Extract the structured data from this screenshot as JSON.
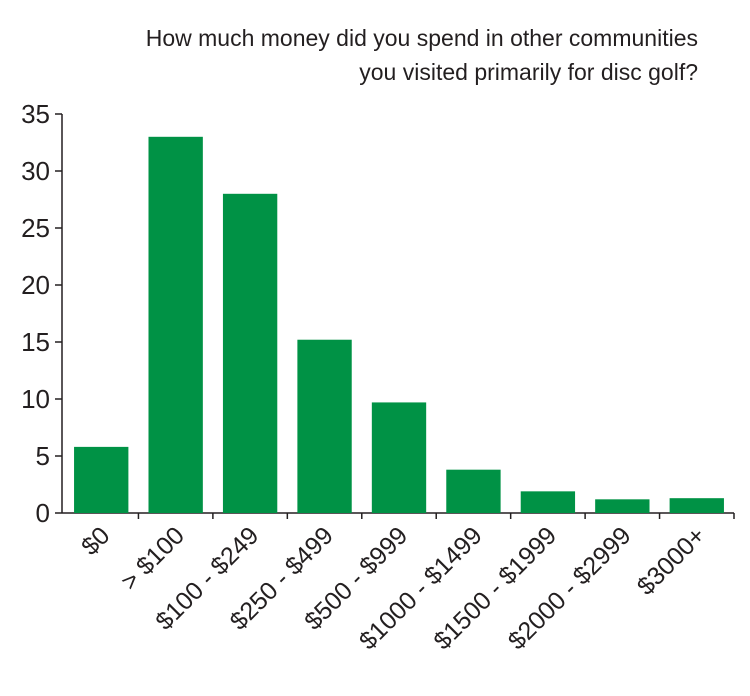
{
  "chart_data": {
    "type": "bar",
    "title_lines": [
      "How much money did you spend in other communities",
      "you visited primarily for disc golf?"
    ],
    "categories": [
      "$0",
      "> $100",
      "$100 - $249",
      "$250 - $499",
      "$500 - $999",
      "$1000 - $1499",
      "$1500 - $1999",
      "$2000 - $2999",
      "$3000+"
    ],
    "values": [
      5.8,
      33,
      28,
      15.2,
      9.7,
      3.8,
      1.9,
      1.2,
      1.3
    ],
    "ylim": [
      0,
      35
    ],
    "yticks": [
      0,
      5,
      10,
      15,
      20,
      25,
      30,
      35
    ],
    "grid": false,
    "bar_color": "#009245",
    "xlabel": "",
    "ylabel": ""
  }
}
